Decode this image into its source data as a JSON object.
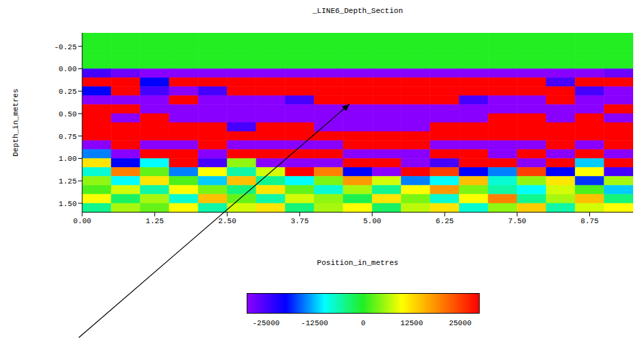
{
  "chart_data": {
    "type": "heatmap",
    "title": "_LINE6_Depth_Section",
    "x_label": "Position_in_metres",
    "y_label": "Depth_in_metres",
    "xlim": [
      0,
      9.5
    ],
    "xticks": [
      {
        "value": 0,
        "label": "0.00"
      },
      {
        "value": 1.25,
        "label": "1.25"
      },
      {
        "value": 2.5,
        "label": "2.50"
      },
      {
        "value": 3.75,
        "label": "3.75"
      },
      {
        "value": 5,
        "label": "5.00"
      },
      {
        "value": 6.25,
        "label": "6.25"
      },
      {
        "value": 7.5,
        "label": "7.50"
      },
      {
        "value": 8.75,
        "label": "8.75"
      }
    ],
    "ylim": [
      -0.4,
      1.6
    ],
    "yticks": [
      {
        "value": -0.25,
        "label": "-0.25"
      },
      {
        "value": 0,
        "label": "0.00"
      },
      {
        "value": 0.25,
        "label": "0.25"
      },
      {
        "value": 0.5,
        "label": "0.50"
      },
      {
        "value": 0.75,
        "label": "0.75"
      },
      {
        "value": 1,
        "label": "1.00"
      },
      {
        "value": 1.25,
        "label": "1.25"
      },
      {
        "value": 1.5,
        "label": "1.50"
      }
    ],
    "cells": {
      "x": [
        0.25,
        0.75,
        1.25,
        1.75,
        2.25,
        2.75,
        3.25,
        3.75,
        4.25,
        4.75,
        5.25,
        5.75,
        6.25,
        6.75,
        7.25,
        7.75,
        8.25,
        8.75,
        9.25
      ],
      "y": [
        -0.35,
        -0.25,
        -0.15,
        -0.05,
        0.05,
        0.15,
        0.25,
        0.35,
        0.45,
        0.55,
        0.65,
        0.75,
        0.85,
        0.95,
        1.05,
        1.15,
        1.25,
        1.35,
        1.45,
        1.55
      ],
      "values": [
        [
          0,
          0,
          0,
          0,
          0,
          0,
          0,
          0,
          0,
          0,
          0,
          0,
          0,
          0,
          0,
          0,
          0,
          0,
          0
        ],
        [
          0,
          0,
          0,
          0,
          0,
          0,
          0,
          0,
          0,
          0,
          0,
          0,
          0,
          0,
          0,
          0,
          0,
          0,
          0
        ],
        [
          0,
          0,
          0,
          0,
          0,
          0,
          0,
          0,
          0,
          0,
          0,
          0,
          0,
          0,
          0,
          0,
          0,
          0,
          0
        ],
        [
          0,
          0,
          0,
          0,
          0,
          0,
          0,
          0,
          0,
          0,
          0,
          0,
          0,
          0,
          0,
          0,
          0,
          0,
          0
        ],
        [
          -25000,
          -28000,
          -30000,
          -30000,
          -30000,
          -30000,
          -30000,
          -30000,
          -30000,
          -30000,
          -30000,
          -30000,
          -30000,
          -30000,
          -30000,
          -30000,
          -30000,
          -30000,
          -28000
        ],
        [
          30000,
          30000,
          -20000,
          30000,
          30000,
          30000,
          30000,
          30000,
          30000,
          30000,
          30000,
          30000,
          30000,
          30000,
          30000,
          30000,
          -25000,
          30000,
          30000
        ],
        [
          -20000,
          30000,
          -25000,
          -30000,
          -25000,
          30000,
          30000,
          30000,
          30000,
          30000,
          30000,
          30000,
          30000,
          30000,
          30000,
          30000,
          30000,
          -25000,
          -30000
        ],
        [
          -30000,
          -30000,
          -30000,
          30000,
          -30000,
          -30000,
          -30000,
          -25000,
          30000,
          30000,
          30000,
          30000,
          30000,
          -25000,
          -30000,
          -30000,
          30000,
          -30000,
          -30000
        ],
        [
          30000,
          30000,
          -30000,
          -30000,
          -30000,
          -30000,
          -30000,
          -30000,
          -30000,
          -30000,
          -30000,
          -30000,
          -30000,
          -30000,
          -30000,
          -30000,
          -30000,
          -30000,
          30000
        ],
        [
          30000,
          -30000,
          30000,
          -30000,
          -30000,
          -30000,
          -30000,
          -30000,
          -30000,
          -30000,
          -30000,
          -30000,
          -30000,
          -30000,
          30000,
          30000,
          -30000,
          30000,
          -30000
        ],
        [
          30000,
          30000,
          30000,
          30000,
          30000,
          -25000,
          30000,
          30000,
          -30000,
          -30000,
          -30000,
          -30000,
          30000,
          30000,
          30000,
          30000,
          30000,
          30000,
          30000
        ],
        [
          30000,
          30000,
          30000,
          30000,
          30000,
          30000,
          30000,
          30000,
          30000,
          30000,
          30000,
          30000,
          30000,
          30000,
          30000,
          30000,
          30000,
          30000,
          30000
        ],
        [
          -30000,
          30000,
          -30000,
          -30000,
          30000,
          -30000,
          -30000,
          -30000,
          -30000,
          30000,
          30000,
          30000,
          -30000,
          -30000,
          -30000,
          -30000,
          30000,
          -30000,
          30000
        ],
        [
          -15000,
          -30000,
          30000,
          30000,
          -30000,
          30000,
          30000,
          30000,
          30000,
          -30000,
          -30000,
          -30000,
          30000,
          30000,
          -30000,
          30000,
          -30000,
          30000,
          -30000
        ],
        [
          12000,
          -20000,
          -10000,
          30000,
          -25000,
          5000,
          -30000,
          -30000,
          -30000,
          30000,
          30000,
          -30000,
          -25000,
          30000,
          30000,
          -30000,
          30000,
          -12000,
          30000
        ],
        [
          -8000,
          20000,
          3000,
          -15000,
          10000,
          -6000,
          8000,
          30000,
          20000,
          -20000,
          -30000,
          30000,
          25000,
          -20000,
          -15000,
          25000,
          -20000,
          10000,
          -25000
        ],
        [
          5000,
          -10000,
          12000,
          2000,
          -12000,
          15000,
          -5000,
          -10000,
          4000,
          18000,
          8000,
          -15000,
          -10000,
          15000,
          -8000,
          5000,
          12000,
          -18000,
          6000
        ],
        [
          2000,
          8000,
          -6000,
          10000,
          4000,
          -4000,
          12000,
          3000,
          -8000,
          6000,
          -5000,
          10000,
          18000,
          4000,
          -6000,
          -10000,
          8000,
          2000,
          -12000
        ],
        [
          10000,
          -3000,
          6000,
          -8000,
          15000,
          3000,
          -6000,
          8000,
          5000,
          -2000,
          12000,
          4000,
          -8000,
          10000,
          20000,
          -5000,
          6000,
          15000,
          -4000
        ],
        [
          -5000,
          6000,
          3000,
          10000,
          -6000,
          8000,
          12000,
          -4000,
          6000,
          10000,
          -3000,
          7000,
          12000,
          -8000,
          5000,
          14000,
          -6000,
          8000,
          10000
        ]
      ]
    },
    "colorbar": {
      "range": [
        -30000,
        30000
      ],
      "ticks": [
        -25000,
        -12500,
        0,
        12500,
        25000
      ]
    }
  }
}
